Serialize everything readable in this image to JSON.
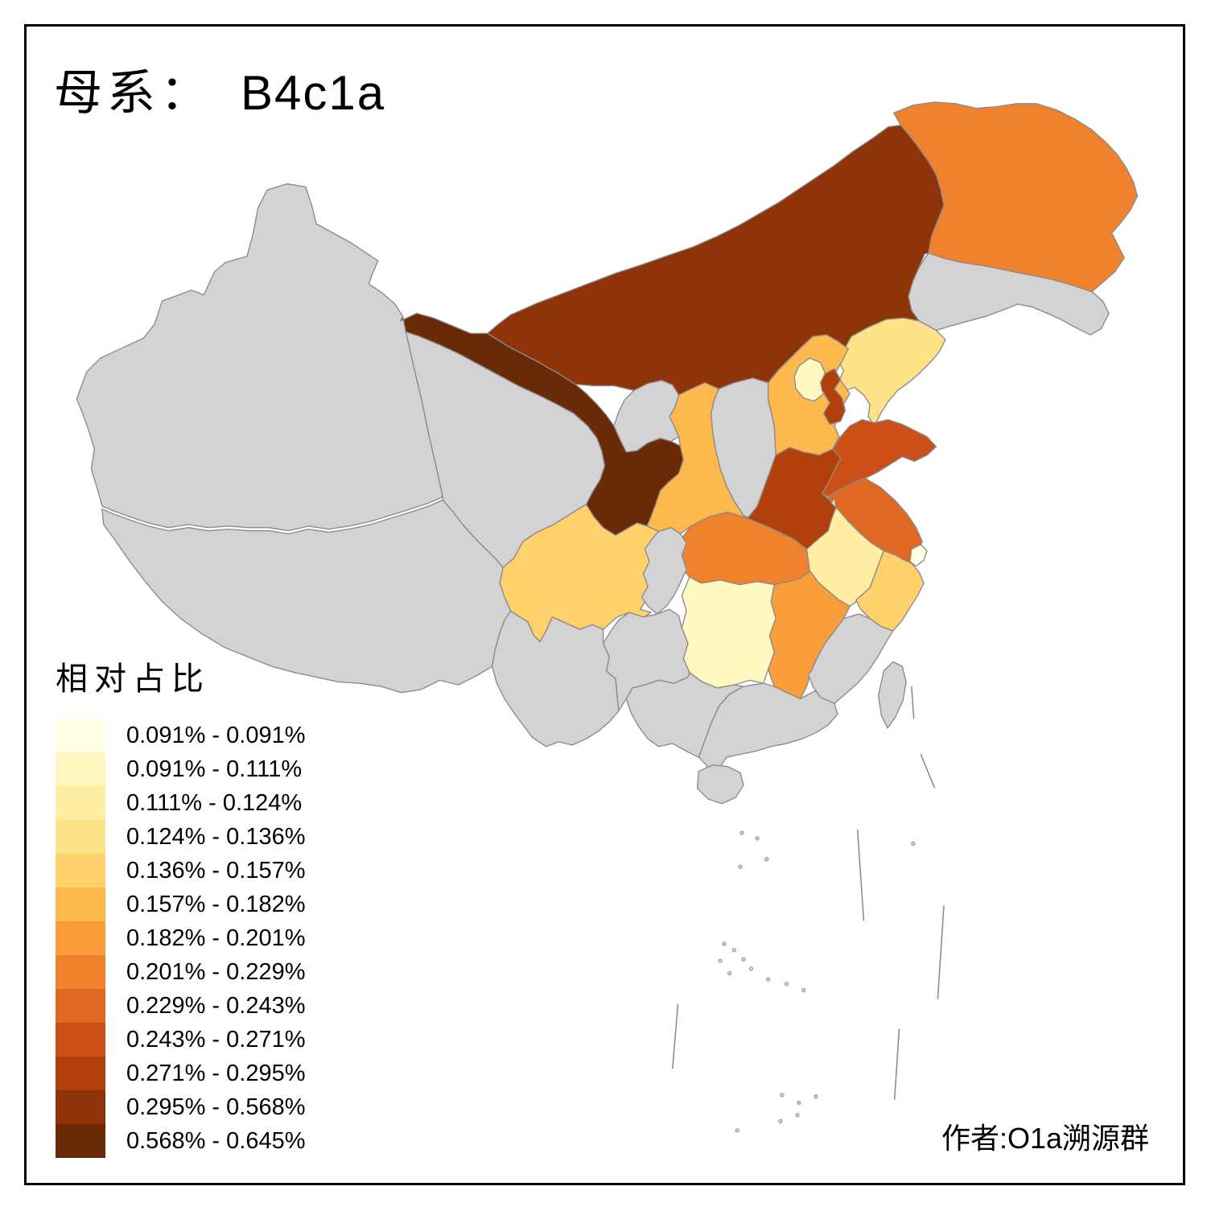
{
  "title": {
    "label": "母系：",
    "value": "B4c1a"
  },
  "legend": {
    "title": "相对占比",
    "classes": [
      {
        "range": "0.091% - 0.091%",
        "color": "#FFFFE5"
      },
      {
        "range": "0.091% - 0.111%",
        "color": "#FFF7C0"
      },
      {
        "range": "0.111% - 0.124%",
        "color": "#FFEEA1"
      },
      {
        "range": "0.124% - 0.136%",
        "color": "#FEE287"
      },
      {
        "range": "0.136% - 0.157%",
        "color": "#FED16B"
      },
      {
        "range": "0.157% - 0.182%",
        "color": "#FDB84E"
      },
      {
        "range": "0.182% - 0.201%",
        "color": "#FB9D3B"
      },
      {
        "range": "0.201% - 0.229%",
        "color": "#F0822D"
      },
      {
        "range": "0.229% - 0.243%",
        "color": "#E06823"
      },
      {
        "range": "0.243% - 0.271%",
        "color": "#CC4F17"
      },
      {
        "range": "0.271% - 0.295%",
        "color": "#B1400C"
      },
      {
        "range": "0.295% - 0.568%",
        "color": "#8F3309"
      },
      {
        "range": "0.568% - 0.645%",
        "color": "#6A2A07"
      }
    ]
  },
  "attribution": "作者:O1a溯源群",
  "map": {
    "na_color": "#D3D3D3",
    "border_color": "#8A8A8A",
    "background": "#FFFFFF",
    "provinces": [
      {
        "id": "xinjiang",
        "class": null
      },
      {
        "id": "tibet",
        "class": null
      },
      {
        "id": "qinghai",
        "class": null
      },
      {
        "id": "gansu",
        "class": 12
      },
      {
        "id": "inner-mongolia",
        "class": 11
      },
      {
        "id": "heilongjiang",
        "class": 7
      },
      {
        "id": "jilin",
        "class": null
      },
      {
        "id": "liaoning",
        "class": 3
      },
      {
        "id": "hebei",
        "class": 5
      },
      {
        "id": "shanxi",
        "class": null
      },
      {
        "id": "shaanxi",
        "class": 5
      },
      {
        "id": "ningxia",
        "class": null
      },
      {
        "id": "sichuan",
        "class": 4
      },
      {
        "id": "hubei",
        "class": 7
      },
      {
        "id": "chongqing",
        "class": null
      },
      {
        "id": "henan",
        "class": 10
      },
      {
        "id": "shandong",
        "class": 9
      },
      {
        "id": "jiangsu",
        "class": 8
      },
      {
        "id": "anhui",
        "class": 2
      },
      {
        "id": "beijing",
        "class": 1
      },
      {
        "id": "tianjin",
        "class": 10
      },
      {
        "id": "shanghai",
        "class": 0
      },
      {
        "id": "zhejiang",
        "class": 4
      },
      {
        "id": "hunan",
        "class": 1
      },
      {
        "id": "jiangxi",
        "class": 6
      },
      {
        "id": "guizhou",
        "class": null
      },
      {
        "id": "yunnan",
        "class": null
      },
      {
        "id": "guangxi",
        "class": null
      },
      {
        "id": "guangdong",
        "class": null
      },
      {
        "id": "fujian",
        "class": null
      },
      {
        "id": "hainan",
        "class": null
      },
      {
        "id": "taiwan",
        "class": null
      }
    ]
  },
  "chart_data": {
    "type": "choropleth",
    "title": "母系： B4c1a",
    "legend_title": "相对占比",
    "legend_position": "bottom-left",
    "unit": "%",
    "class_breaks": [
      0.091,
      0.091,
      0.111,
      0.124,
      0.136,
      0.157,
      0.182,
      0.201,
      0.229,
      0.243,
      0.271,
      0.295,
      0.568,
      0.645
    ],
    "regions": [
      {
        "region": "shanghai",
        "range": "0.091% - 0.091%"
      },
      {
        "region": "beijing",
        "range": "0.091% - 0.111%"
      },
      {
        "region": "hunan",
        "range": "0.091% - 0.111%"
      },
      {
        "region": "anhui",
        "range": "0.111% - 0.124%"
      },
      {
        "region": "liaoning",
        "range": "0.124% - 0.136%"
      },
      {
        "region": "sichuan",
        "range": "0.136% - 0.157%"
      },
      {
        "region": "zhejiang",
        "range": "0.136% - 0.157%"
      },
      {
        "region": "hebei",
        "range": "0.157% - 0.182%"
      },
      {
        "region": "shaanxi",
        "range": "0.157% - 0.182%"
      },
      {
        "region": "jiangxi",
        "range": "0.182% - 0.201%"
      },
      {
        "region": "heilongjiang",
        "range": "0.201% - 0.229%"
      },
      {
        "region": "hubei",
        "range": "0.201% - 0.229%"
      },
      {
        "region": "jiangsu",
        "range": "0.229% - 0.243%"
      },
      {
        "region": "shandong",
        "range": "0.243% - 0.271%"
      },
      {
        "region": "henan",
        "range": "0.271% - 0.295%"
      },
      {
        "region": "tianjin",
        "range": "0.271% - 0.295%"
      },
      {
        "region": "inner-mongolia",
        "range": "0.295% - 0.568%"
      },
      {
        "region": "gansu",
        "range": "0.568% - 0.645%"
      }
    ],
    "no_data_regions": [
      "xinjiang",
      "tibet",
      "qinghai",
      "ningxia",
      "shanxi",
      "jilin",
      "chongqing",
      "guizhou",
      "yunnan",
      "guangxi",
      "guangdong",
      "fujian",
      "hainan",
      "taiwan"
    ]
  }
}
